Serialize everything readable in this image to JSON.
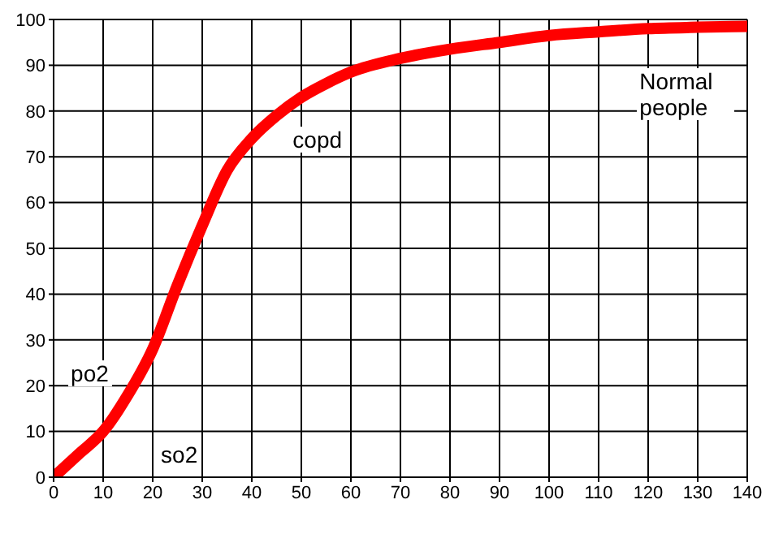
{
  "chart_data": {
    "type": "line",
    "x": [
      0,
      5,
      10,
      15,
      20,
      25,
      30,
      35,
      40,
      45,
      50,
      55,
      60,
      70,
      80,
      90,
      100,
      110,
      120,
      130,
      140
    ],
    "series": [
      {
        "color": "#ff0000",
        "values": [
          0,
          5,
          10,
          18,
          28,
          42,
          55,
          67,
          74,
          79,
          83,
          86,
          88.5,
          91.5,
          93.5,
          95,
          96.5,
          97.3,
          98,
          98.3,
          98.5
        ]
      }
    ],
    "xlim": [
      0,
      140
    ],
    "xticks": [
      0,
      10,
      20,
      30,
      40,
      50,
      60,
      70,
      80,
      90,
      100,
      110,
      120,
      130,
      140
    ],
    "ylim": [
      0,
      100
    ],
    "yticks": [
      0,
      10,
      20,
      30,
      40,
      50,
      60,
      70,
      80,
      90,
      100
    ],
    "annotations": [
      "po2",
      "so2",
      "copd",
      "Normal people"
    ],
    "grid": true,
    "legend": false,
    "marker": "none",
    "line_style": "solid"
  }
}
